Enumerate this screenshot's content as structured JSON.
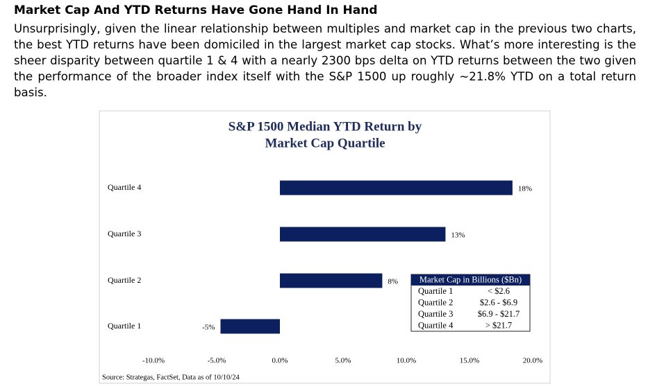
{
  "heading": "Market Cap And YTD Returns Have Gone Hand In Hand",
  "paragraph": "Unsurprisingly, given the linear relationship between multiples and market cap in the previous two charts, the best YTD returns have been domiciled in the largest market cap stocks. What’s more interesting is the sheer disparity between quartile 1 & 4 with a nearly 2300 bps delta on YTD returns between the two given the performance of the broader index itself with the S&P 1500 up roughly ~21.8% YTD on a total return basis.",
  "chart_data": {
    "type": "hbar",
    "title": [
      "S&P 1500 Median YTD Return by",
      "Market Cap Quartile"
    ],
    "categories": [
      "Quartile 4",
      "Quartile 3",
      "Quartile 2",
      "Quartile 1"
    ],
    "values": [
      18.4,
      13.1,
      8.1,
      -4.7
    ],
    "value_labels": [
      "18%",
      "13%",
      "8%",
      "-5%"
    ],
    "color": "#0c1f5e",
    "xlim": [
      -10,
      20
    ],
    "xticks": [
      {
        "value": -10,
        "label": "-10.0%"
      },
      {
        "value": -5,
        "label": "-5.0%"
      },
      {
        "value": 0,
        "label": "0.0%"
      },
      {
        "value": 5,
        "label": "5.0%"
      },
      {
        "value": 10,
        "label": "10.0%"
      },
      {
        "value": 15,
        "label": "15.0%"
      },
      {
        "value": 20,
        "label": "20.0%"
      }
    ],
    "source": "Source: Strategas, FactSet, Data as of 10/10/24",
    "inset_table": {
      "title": "Market Cap in Billions ($Bn)",
      "rows": [
        [
          "Quartile 1",
          "< $2.6"
        ],
        [
          "Quartile 2",
          "$2.6 - $6.9"
        ],
        [
          "Quartile 3",
          "$6.9 - $21.7"
        ],
        [
          "Quartile 4",
          "> $21.7"
        ]
      ]
    }
  }
}
